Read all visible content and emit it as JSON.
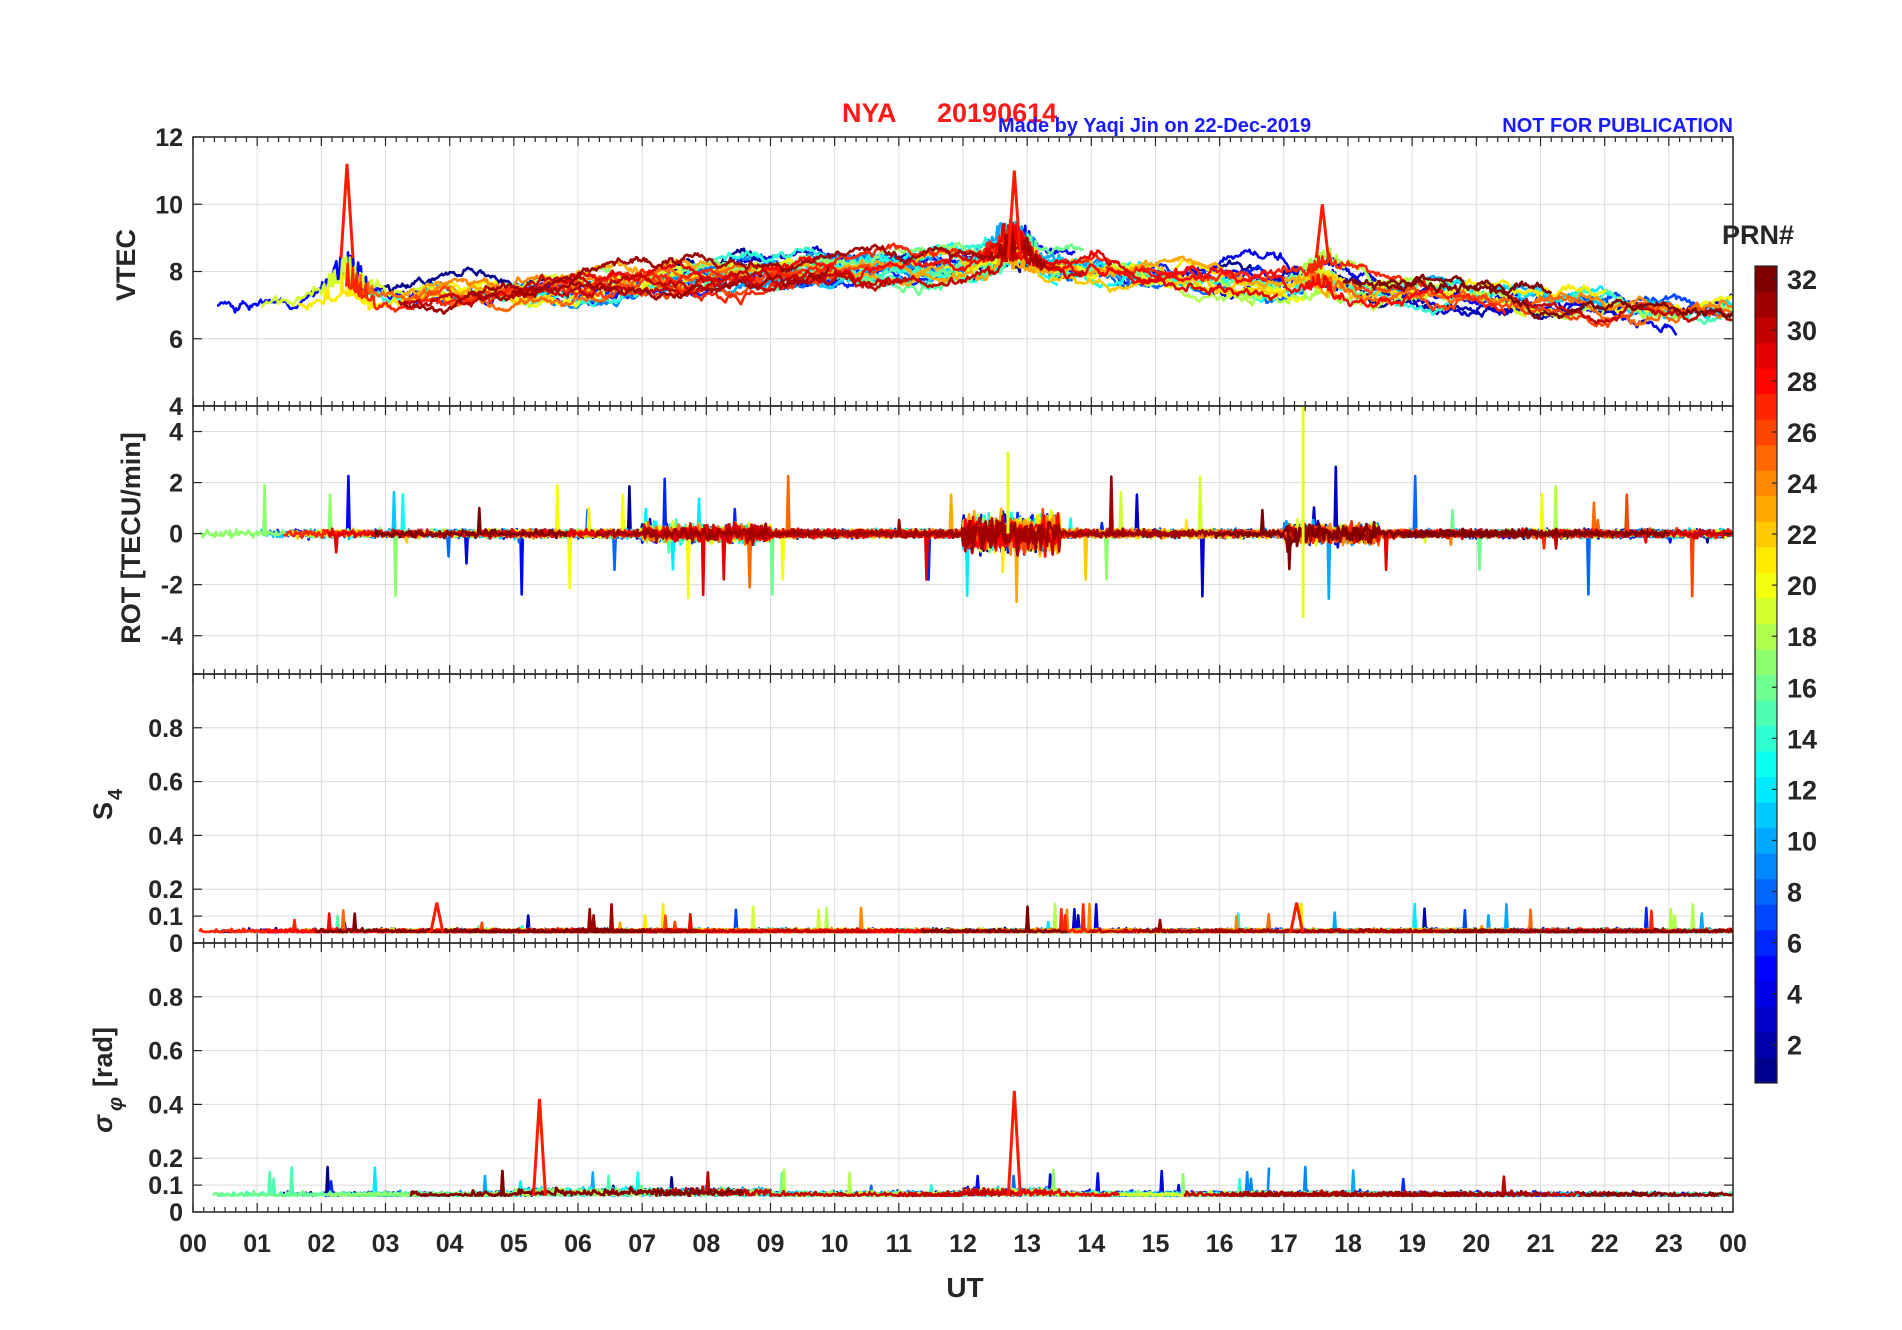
{
  "header": {
    "station": "NYA",
    "date": "20190614",
    "credit": "Made by Yaqi Jin on 22-Dec-2019",
    "notice": "NOT FOR PUBLICATION"
  },
  "colors": {
    "title": "#ff1a1a",
    "credit": "#1a1aff",
    "axis": "#262626",
    "grid": "#dcdcdc"
  },
  "chart_data": [
    {
      "type": "line",
      "id": "vtec",
      "ylabel": "VTEC",
      "ylim": [
        4,
        12
      ],
      "yticks": [
        "6",
        "8",
        "10",
        "12"
      ],
      "ytick_values": [
        6,
        8,
        10,
        12
      ],
      "baseline": 7.6,
      "spread": 0.9,
      "features": [
        {
          "x": 2.4,
          "y": 11.2,
          "label": "spike PRN ~28"
        },
        {
          "x": 12.8,
          "y": 11.0,
          "label": "enhancement"
        },
        {
          "x": 17.6,
          "y": 10.0,
          "label": "peak PRN ~31"
        }
      ]
    },
    {
      "type": "line",
      "id": "rot",
      "ylabel": "ROT [TECU/min]",
      "ylim": [
        -5.5,
        5
      ],
      "yticks": [
        "-4",
        "-2",
        "0",
        "2",
        "4"
      ],
      "ytick_values": [
        -4,
        -2,
        0,
        2,
        4
      ],
      "baseline": 0,
      "spread": 0.25,
      "features": [
        {
          "x": 17.3,
          "y": 5.0,
          "label": "max"
        },
        {
          "x": 17.3,
          "y": -3.3,
          "label": "min"
        },
        {
          "x": 12.7,
          "y": 3.2,
          "label": "burst"
        }
      ]
    },
    {
      "type": "line",
      "id": "s4",
      "ylabel": "S4",
      "ylabel_main": "S",
      "ylabel_sub": "4",
      "ylim": [
        0,
        1
      ],
      "yticks": [
        "0",
        "0.1",
        "0.2",
        "0.4",
        "0.6",
        "0.8"
      ],
      "ytick_values": [
        0,
        0.1,
        0.2,
        0.4,
        0.6,
        0.8
      ],
      "baseline": 0.04,
      "spread": 0.012,
      "features": [
        {
          "x": 3.8,
          "y": 0.15,
          "label": "peak"
        },
        {
          "x": 17.2,
          "y": 0.15,
          "label": "peak"
        }
      ]
    },
    {
      "type": "line",
      "id": "sigma_phi",
      "ylabel": "σφ [rad]",
      "ylabel_main": "σ",
      "ylabel_sub": "φ",
      "ylabel_unit": "[rad]",
      "ylim": [
        0,
        1
      ],
      "yticks": [
        "0",
        "0.1",
        "0.2",
        "0.4",
        "0.6",
        "0.8"
      ],
      "ytick_values": [
        0,
        0.1,
        0.2,
        0.4,
        0.6,
        0.8
      ],
      "baseline": 0.06,
      "spread": 0.015,
      "features": [
        {
          "x": 5.4,
          "y": 0.42,
          "label": "spike"
        },
        {
          "x": 12.8,
          "y": 0.45,
          "label": "spike"
        }
      ]
    }
  ],
  "x_axis": {
    "label": "UT",
    "xlim": [
      0,
      24
    ],
    "ticks": [
      "00",
      "01",
      "02",
      "03",
      "04",
      "05",
      "06",
      "07",
      "08",
      "09",
      "10",
      "11",
      "12",
      "13",
      "14",
      "15",
      "16",
      "17",
      "18",
      "19",
      "20",
      "21",
      "22",
      "23",
      "00"
    ]
  },
  "colorbar": {
    "label": "PRN#",
    "range": [
      1,
      32
    ],
    "ticks": [
      "2",
      "4",
      "6",
      "8",
      "10",
      "12",
      "14",
      "16",
      "18",
      "20",
      "22",
      "24",
      "26",
      "28",
      "30",
      "32"
    ],
    "tick_values": [
      2,
      4,
      6,
      8,
      10,
      12,
      14,
      16,
      18,
      20,
      22,
      24,
      26,
      28,
      30,
      32
    ],
    "colormap": [
      "#00008f",
      "#0000ff",
      "#0080ff",
      "#00ffff",
      "#80ff80",
      "#ffff00",
      "#ff8000",
      "#ff0000",
      "#800000"
    ]
  }
}
